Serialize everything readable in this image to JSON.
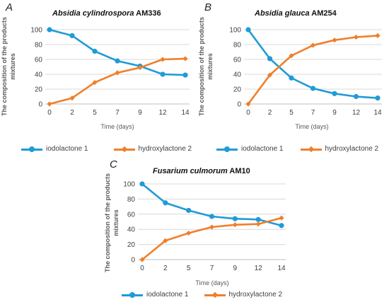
{
  "panels": [
    {
      "letter": "A",
      "title_italic": "Absidia cylindrospora",
      "title_rest": " AM336"
    },
    {
      "letter": "B",
      "title_italic": "Absidia glauca",
      "title_rest": " AM254"
    },
    {
      "letter": "C",
      "title_italic": "Fusarium culmorum",
      "title_rest": " AM10"
    }
  ],
  "common": {
    "ylabel": "The composition of the products mixtures",
    "xlabel": "Time (days)",
    "legend": [
      "iodolactone 1",
      "hydroxylactone 2"
    ]
  },
  "colors": {
    "iodolactone": "#1f9bd7",
    "hydroxylactone": "#f07f2a",
    "grid": "#d9d9d9",
    "axis": "#bfbfbf"
  },
  "chart_data": [
    {
      "type": "line",
      "title": "Absidia cylindrospora AM336",
      "xlabel": "Time (days)",
      "ylabel": "The composition of the products mixtures",
      "categories": [
        "0",
        "2",
        "5",
        "7",
        "9",
        "12",
        "14"
      ],
      "ylim": [
        0,
        100
      ],
      "yticks": [
        0,
        20,
        40,
        60,
        80,
        100
      ],
      "grid": true,
      "legend_position": "bottom",
      "series": [
        {
          "name": "iodolactone 1",
          "values": [
            100,
            92,
            71,
            58,
            51,
            40,
            39
          ]
        },
        {
          "name": "hydroxylactone 2",
          "values": [
            0,
            8,
            29,
            42,
            49,
            60,
            61
          ]
        }
      ]
    },
    {
      "type": "line",
      "title": "Absidia glauca AM254",
      "xlabel": "Time (days)",
      "ylabel": "The composition of the products mixtures",
      "categories": [
        "0",
        "2",
        "5",
        "7",
        "9",
        "12",
        "14"
      ],
      "ylim": [
        0,
        100
      ],
      "yticks": [
        0,
        20,
        40,
        60,
        80,
        100
      ],
      "grid": true,
      "legend_position": "bottom",
      "series": [
        {
          "name": "iodolactone 1",
          "values": [
            100,
            61,
            35,
            21,
            14,
            10,
            8
          ]
        },
        {
          "name": "hydroxylactone 2",
          "values": [
            0,
            39,
            65,
            79,
            86,
            90,
            92
          ]
        }
      ]
    },
    {
      "type": "line",
      "title": "Fusarium culmorum AM10",
      "xlabel": "Time (days)",
      "ylabel": "The composition of the products mixtures",
      "categories": [
        "0",
        "2",
        "5",
        "7",
        "9",
        "12",
        "14"
      ],
      "ylim": [
        0,
        100
      ],
      "yticks": [
        0,
        20,
        40,
        60,
        80,
        100
      ],
      "grid": true,
      "legend_position": "bottom",
      "series": [
        {
          "name": "iodolactone 1",
          "values": [
            100,
            75,
            65,
            57,
            54,
            53,
            45
          ]
        },
        {
          "name": "hydroxylactone 2",
          "values": [
            0,
            25,
            35,
            43,
            46,
            47,
            55
          ]
        }
      ]
    }
  ]
}
